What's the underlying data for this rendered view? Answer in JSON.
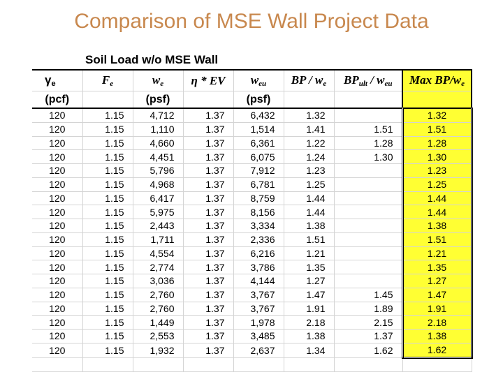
{
  "title": "Comparison of MSE Wall Project Data",
  "section_header": "Soil Load w/o MSE Wall",
  "headers": {
    "gamma_e": {
      "sym": "γ",
      "sub": "e",
      "unit": "(pcf)"
    },
    "F_e": {
      "sym": "F",
      "sub": "e"
    },
    "w_e": {
      "sym": "w",
      "sub": "e",
      "unit": "(psf)"
    },
    "eta_EV": {
      "sym": "η",
      "text": " * EV"
    },
    "w_eu": {
      "sym": "w",
      "sub": "eu",
      "unit": "(psf)"
    },
    "bp_we": {
      "text": "BP / w",
      "sub": "e"
    },
    "bp_ult": {
      "text": "BP",
      "sub1": "ult",
      "text2": " / w",
      "sub2": "eu"
    },
    "max_bp": {
      "text": "Max BP/w",
      "sub": "e"
    }
  },
  "rows": [
    {
      "gamma": "120",
      "fe": "1.15",
      "we": "4,712",
      "eta": "1.37",
      "weu": "6,432",
      "bpwe": "1.32",
      "bpult": "",
      "max": "1.32"
    },
    {
      "gamma": "120",
      "fe": "1.15",
      "we": "1,110",
      "eta": "1.37",
      "weu": "1,514",
      "bpwe": "1.41",
      "bpult": "1.51",
      "max": "1.51"
    },
    {
      "gamma": "120",
      "fe": "1.15",
      "we": "4,660",
      "eta": "1.37",
      "weu": "6,361",
      "bpwe": "1.22",
      "bpult": "1.28",
      "max": "1.28"
    },
    {
      "gamma": "120",
      "fe": "1.15",
      "we": "4,451",
      "eta": "1.37",
      "weu": "6,075",
      "bpwe": "1.24",
      "bpult": "1.30",
      "max": "1.30"
    },
    {
      "gamma": "120",
      "fe": "1.15",
      "we": "5,796",
      "eta": "1.37",
      "weu": "7,912",
      "bpwe": "1.23",
      "bpult": "",
      "max": "1.23"
    },
    {
      "gamma": "120",
      "fe": "1.15",
      "we": "4,968",
      "eta": "1.37",
      "weu": "6,781",
      "bpwe": "1.25",
      "bpult": "",
      "max": "1.25"
    },
    {
      "gamma": "120",
      "fe": "1.15",
      "we": "6,417",
      "eta": "1.37",
      "weu": "8,759",
      "bpwe": "1.44",
      "bpult": "",
      "max": "1.44"
    },
    {
      "gamma": "120",
      "fe": "1.15",
      "we": "5,975",
      "eta": "1.37",
      "weu": "8,156",
      "bpwe": "1.44",
      "bpult": "",
      "max": "1.44"
    },
    {
      "gamma": "120",
      "fe": "1.15",
      "we": "2,443",
      "eta": "1.37",
      "weu": "3,334",
      "bpwe": "1.38",
      "bpult": "",
      "max": "1.38"
    },
    {
      "gamma": "120",
      "fe": "1.15",
      "we": "1,711",
      "eta": "1.37",
      "weu": "2,336",
      "bpwe": "1.51",
      "bpult": "",
      "max": "1.51"
    },
    {
      "gamma": "120",
      "fe": "1.15",
      "we": "4,554",
      "eta": "1.37",
      "weu": "6,216",
      "bpwe": "1.21",
      "bpult": "",
      "max": "1.21"
    },
    {
      "gamma": "120",
      "fe": "1.15",
      "we": "2,774",
      "eta": "1.37",
      "weu": "3,786",
      "bpwe": "1.35",
      "bpult": "",
      "max": "1.35"
    },
    {
      "gamma": "120",
      "fe": "1.15",
      "we": "3,036",
      "eta": "1.37",
      "weu": "4,144",
      "bpwe": "1.27",
      "bpult": "",
      "max": "1.27"
    },
    {
      "gamma": "120",
      "fe": "1.15",
      "we": "2,760",
      "eta": "1.37",
      "weu": "3,767",
      "bpwe": "1.47",
      "bpult": "1.45",
      "max": "1.47"
    },
    {
      "gamma": "120",
      "fe": "1.15",
      "we": "2,760",
      "eta": "1.37",
      "weu": "3,767",
      "bpwe": "1.91",
      "bpult": "1.89",
      "max": "1.91"
    },
    {
      "gamma": "120",
      "fe": "1.15",
      "we": "1,449",
      "eta": "1.37",
      "weu": "1,978",
      "bpwe": "2.18",
      "bpult": "2.15",
      "max": "2.18"
    },
    {
      "gamma": "120",
      "fe": "1.15",
      "we": "2,553",
      "eta": "1.37",
      "weu": "3,485",
      "bpwe": "1.38",
      "bpult": "1.37",
      "max": "1.38"
    },
    {
      "gamma": "120",
      "fe": "1.15",
      "we": "1,932",
      "eta": "1.37",
      "weu": "2,637",
      "bpwe": "1.34",
      "bpult": "1.62",
      "max": "1.62"
    }
  ],
  "colors": {
    "title": "#c8884e",
    "highlight": "#ffff33",
    "gridline": "#d4d4d4"
  }
}
